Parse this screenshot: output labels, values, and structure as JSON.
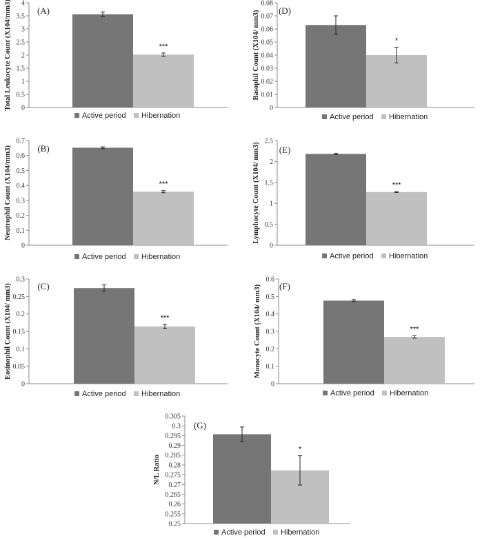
{
  "colors": {
    "active": "#767676",
    "hibernation": "#c0c0c0",
    "axis": "#8a8a8a",
    "error": "#222222"
  },
  "legend": {
    "active": "Active period",
    "hibernation": "Hibernation"
  },
  "chart_data": [
    {
      "panel": "(A)",
      "type": "bar",
      "ylabel": "Total Leukocyte Count (X104/mm3)",
      "ylim": [
        0,
        4
      ],
      "ticks": [
        "0",
        "0.5",
        "1",
        "1.5",
        "2",
        "2.5",
        "3",
        "3.5",
        "4"
      ],
      "categories": [
        "Active period",
        "Hibernation"
      ],
      "values": [
        3.56,
        2.02
      ],
      "errors": [
        0.09,
        0.06
      ],
      "significance": "***"
    },
    {
      "panel": "(D)",
      "type": "bar",
      "ylabel": "Basophil Count (X104/ mm3)",
      "ylim": [
        0,
        0.08
      ],
      "ticks": [
        "0",
        "0.01",
        "0.02",
        "0.03",
        "0.04",
        "0.05",
        "0.06",
        "0.07",
        "0.08"
      ],
      "categories": [
        "Active period",
        "Hibernation"
      ],
      "values": [
        0.063,
        0.04
      ],
      "errors": [
        0.007,
        0.006
      ],
      "significance": "*"
    },
    {
      "panel": "(B)",
      "type": "bar",
      "ylabel": "Neutrophil Count (X104/mm3)",
      "ylim": [
        0,
        0.7
      ],
      "ticks": [
        "0",
        "0.1",
        "0.2",
        "0.3",
        "0.4",
        "0.5",
        "0.6",
        "0.7"
      ],
      "categories": [
        "Active period",
        "Hibernation"
      ],
      "values": [
        0.652,
        0.358
      ],
      "errors": [
        0.006,
        0.007
      ],
      "significance": "***"
    },
    {
      "panel": "(E)",
      "type": "bar",
      "ylabel": "Lymphocyte Count (X104/ mm3)",
      "ylim": [
        0,
        2.5
      ],
      "ticks": [
        "0",
        "0.5",
        "1",
        "1.5",
        "2",
        "2.5"
      ],
      "categories": [
        "Active period",
        "Hibernation"
      ],
      "values": [
        2.18,
        1.27
      ],
      "errors": [
        0.01,
        0.01
      ],
      "significance": "***"
    },
    {
      "panel": "(C)",
      "type": "bar",
      "ylabel": "Eosinophil Count (X104/ mm3)",
      "ylim": [
        0,
        0.3
      ],
      "ticks": [
        "0",
        "0.05",
        "0.1",
        "0.15",
        "0.2",
        "0.25",
        "0.3"
      ],
      "categories": [
        "Active period",
        "Hibernation"
      ],
      "values": [
        0.274,
        0.164
      ],
      "errors": [
        0.009,
        0.006
      ],
      "significance": "***"
    },
    {
      "panel": "(F)",
      "type": "bar",
      "ylabel": "Monocyte Count (X104/ mm3)",
      "ylim": [
        0,
        0.6
      ],
      "ticks": [
        "0",
        "0.1",
        "0.2",
        "0.3",
        "0.4",
        "0.5",
        "0.6"
      ],
      "categories": [
        "Active period",
        "Hibernation"
      ],
      "values": [
        0.476,
        0.268
      ],
      "errors": [
        0.006,
        0.007
      ],
      "significance": "***"
    },
    {
      "panel": "(G)",
      "type": "bar",
      "ylabel": "N/L Ratio",
      "ylim": [
        0.25,
        0.305
      ],
      "ticks": [
        "0.25",
        "0.255",
        "0.26",
        "0.265",
        "0.27",
        "0.275",
        "0.28",
        "0.285",
        "0.29",
        "0.295",
        "0.3",
        "0.305"
      ],
      "categories": [
        "Active period",
        "Hibernation"
      ],
      "values": [
        0.2957,
        0.2772
      ],
      "errors": [
        0.0037,
        0.0075
      ],
      "significance": "*"
    }
  ]
}
